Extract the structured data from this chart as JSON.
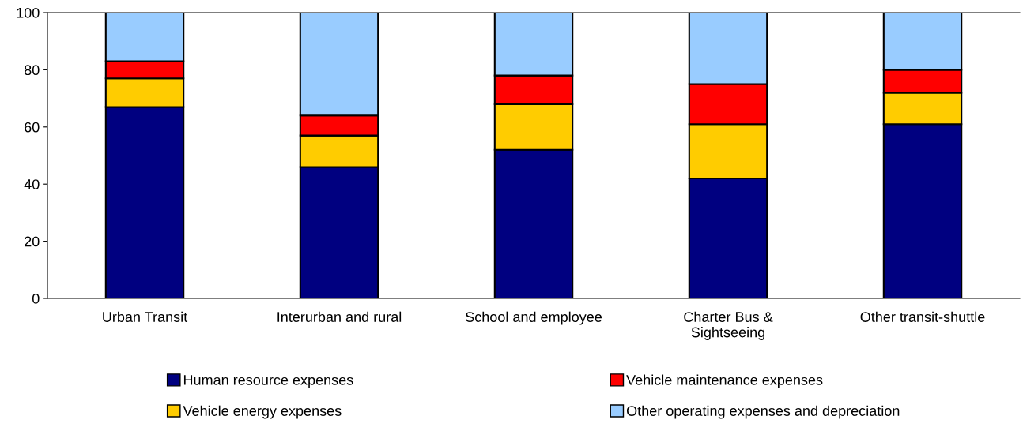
{
  "chart_data": {
    "type": "bar",
    "stacked": true,
    "categories": [
      "Urban Transit",
      "Interurban and rural",
      "School and employee",
      "Charter Bus &\nSightseeing",
      "Other transit-shuttle"
    ],
    "series": [
      {
        "name": "Human resource expenses",
        "color": "#000080",
        "values": [
          67,
          46,
          52,
          42,
          61
        ]
      },
      {
        "name": "Vehicle energy expenses",
        "color": "#ffcc00",
        "values": [
          10,
          11,
          16,
          19,
          11
        ]
      },
      {
        "name": "Vehicle maintenance expenses",
        "color": "#ff0000",
        "values": [
          6,
          7,
          10,
          14,
          8
        ]
      },
      {
        "name": "Other operating expenses and depreciation",
        "color": "#99ccff",
        "values": [
          17,
          36,
          22,
          25,
          20
        ]
      }
    ],
    "ylim": [
      0,
      100
    ],
    "yticks": [
      0,
      20,
      40,
      60,
      80,
      100
    ],
    "grid": false,
    "legend": "bottom"
  }
}
